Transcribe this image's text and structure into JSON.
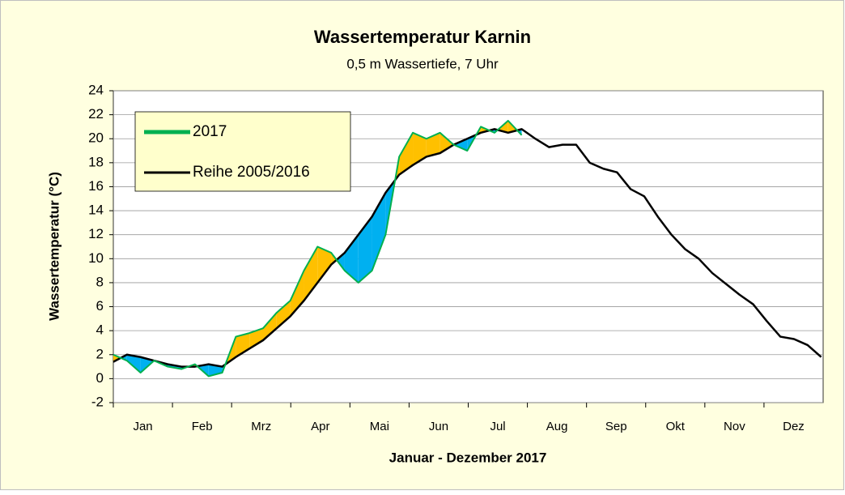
{
  "chart_data": {
    "type": "line",
    "title": "Wassertemperatur Karnin",
    "subtitle": "0,5 m Wassertiefe, 7 Uhr",
    "y_label": "Wassertemperatur (°C)",
    "x_label": "Januar - Dezember 2017",
    "categories": [
      "Jan",
      "Feb",
      "Mrz",
      "Apr",
      "Mai",
      "Jun",
      "Jul",
      "Aug",
      "Sep",
      "Okt",
      "Nov",
      "Dez"
    ],
    "x": [
      0,
      7,
      14,
      21,
      28,
      35,
      42,
      49,
      56,
      63,
      70,
      77,
      84,
      91,
      98,
      105,
      112,
      119,
      126,
      133,
      140,
      147,
      154,
      161,
      168,
      175,
      182,
      189,
      196,
      203,
      210,
      217,
      224,
      231,
      238,
      245,
      252,
      259,
      266,
      273,
      280,
      287,
      294,
      301,
      308,
      315,
      322,
      329,
      336,
      343,
      350,
      357,
      364
    ],
    "xlim": [
      0,
      365
    ],
    "ylim": [
      -2,
      24
    ],
    "yticks": [
      -2,
      0,
      2,
      4,
      6,
      8,
      10,
      12,
      14,
      16,
      18,
      20,
      22,
      24
    ],
    "grid": true,
    "legend": "upper-left",
    "above_color": "#ffc000",
    "below_color": "#00b0f0",
    "series": [
      {
        "name": "2017",
        "color": "#00b050",
        "values": [
          2.0,
          1.5,
          0.5,
          1.5,
          1.0,
          0.8,
          1.2,
          0.2,
          0.5,
          3.5,
          3.8,
          4.2,
          5.5,
          6.5,
          9.0,
          11.0,
          10.5,
          9.0,
          8.0,
          9.0,
          12.0,
          18.5,
          20.5,
          20.0,
          20.5,
          19.5,
          19.0,
          21.0,
          20.5,
          21.5,
          20.3,
          null,
          null,
          null,
          null,
          null,
          null,
          null,
          null,
          null,
          null,
          null,
          null,
          null,
          null,
          null,
          null,
          null,
          null,
          null,
          null,
          null,
          null
        ]
      },
      {
        "name": "Reihe 2005/2016",
        "color": "#000000",
        "values": [
          1.4,
          2.0,
          1.8,
          1.5,
          1.2,
          1.0,
          1.0,
          1.2,
          1.0,
          1.8,
          2.5,
          3.2,
          4.2,
          5.2,
          6.5,
          8.0,
          9.5,
          10.5,
          12.0,
          13.5,
          15.5,
          17.0,
          17.8,
          18.5,
          18.8,
          19.5,
          20.0,
          20.5,
          20.8,
          20.5,
          20.8,
          20.0,
          19.3,
          19.5,
          19.5,
          18.0,
          17.5,
          17.2,
          15.8,
          15.2,
          13.5,
          12.0,
          10.8,
          10.0,
          8.8,
          7.9,
          7.0,
          6.2,
          4.8,
          3.5,
          3.3,
          2.8,
          1.8
        ]
      }
    ]
  }
}
